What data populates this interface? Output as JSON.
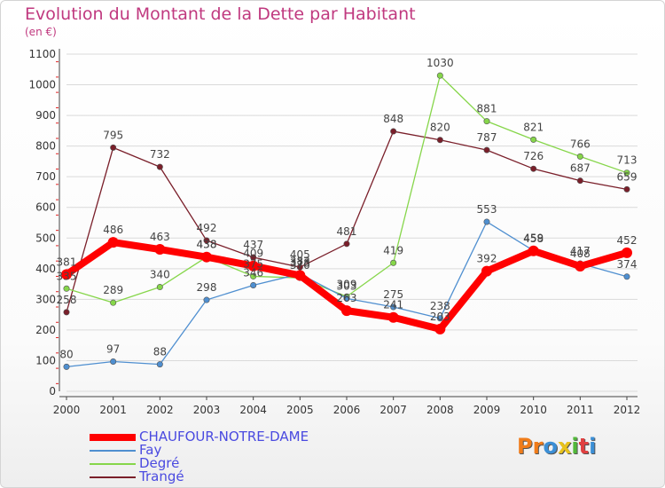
{
  "header": {
    "title": "Evolution du Montant de la Dette par Habitant",
    "subtitle": "(en €)"
  },
  "logo": {
    "text": "Proxiti",
    "colors": [
      "#f07c1a",
      "#f07c1a",
      "#3b8fd6",
      "#e8c21c",
      "#52b83a",
      "#e04040",
      "#3b8fd6"
    ]
  },
  "chart_data": {
    "type": "line",
    "x": [
      "2000",
      "2001",
      "2002",
      "2003",
      "2004",
      "2005",
      "2006",
      "2007",
      "2008",
      "2009",
      "2010",
      "2011",
      "2012"
    ],
    "ylim": [
      0,
      1100
    ],
    "yticks": [
      0,
      100,
      200,
      300,
      400,
      500,
      600,
      700,
      800,
      900,
      1000,
      1100
    ],
    "grid": true,
    "legend_position": "bottom-left",
    "series": [
      {
        "name": "CHAUFOUR-NOTRE-DAME",
        "color": "#ff0000",
        "values": [
          381,
          486,
          463,
          438,
          409,
          378,
          263,
          241,
          203,
          392,
          458,
          408,
          452
        ]
      },
      {
        "name": "Fay",
        "color": "#4f8fd0",
        "values": [
          80,
          97,
          88,
          298,
          346,
          383,
          303,
          275,
          238,
          553,
          459,
          417,
          374
        ]
      },
      {
        "name": "Degré",
        "color": "#86d64a",
        "values": [
          335,
          289,
          340,
          438,
          375,
          370,
          309,
          419,
          1030,
          881,
          821,
          766,
          713
        ]
      },
      {
        "name": "Trangé",
        "color": "#7a1f2a",
        "values": [
          258,
          795,
          732,
          492,
          437,
          405,
          481,
          848,
          820,
          787,
          726,
          687,
          659
        ]
      }
    ]
  }
}
